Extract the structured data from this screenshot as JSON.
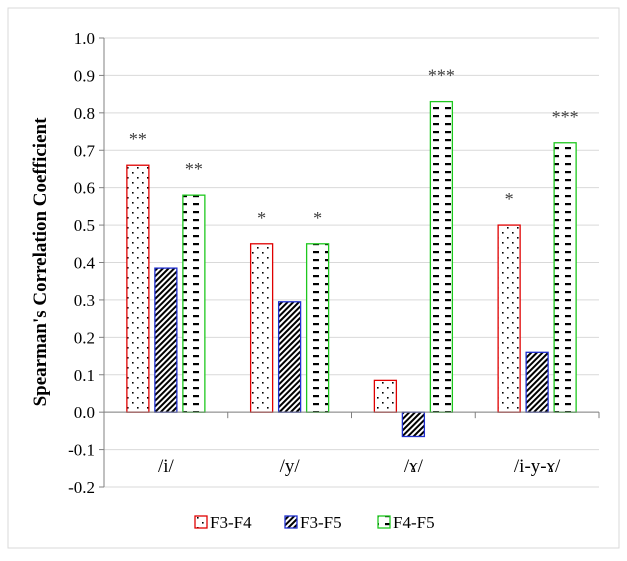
{
  "chart_data": {
    "type": "bar",
    "title": "",
    "xlabel": "",
    "ylabel": "Spearman's Correlation Coefficient",
    "ylim": [
      -0.2,
      1.0
    ],
    "yticks": [
      "1.0",
      "0.9",
      "0.8",
      "0.7",
      "0.6",
      "0.5",
      "0.4",
      "0.3",
      "0.2",
      "0.1",
      "0.0",
      "-0.1",
      "-0.2"
    ],
    "grid": true,
    "legend_position": "bottom",
    "categories": [
      "/i/",
      "/y/",
      "/ɤ/",
      "/i-y-ɤ/"
    ],
    "series": [
      {
        "name": "F3-F4",
        "color": "#e00000",
        "pattern": "dots",
        "values": [
          0.66,
          0.45,
          0.085,
          0.5
        ],
        "annotations": [
          "**",
          "*",
          "",
          "*"
        ]
      },
      {
        "name": "F3-F5",
        "color": "#1f2fd0",
        "pattern": "diagonal-hatch",
        "values": [
          0.385,
          0.295,
          -0.065,
          0.16
        ],
        "annotations": [
          "",
          "",
          "",
          ""
        ]
      },
      {
        "name": "F4-F5",
        "color": "#1ec81e",
        "pattern": "dashes",
        "values": [
          0.58,
          0.45,
          0.83,
          0.72
        ],
        "annotations": [
          "**",
          "*",
          "***",
          "***"
        ]
      }
    ]
  }
}
